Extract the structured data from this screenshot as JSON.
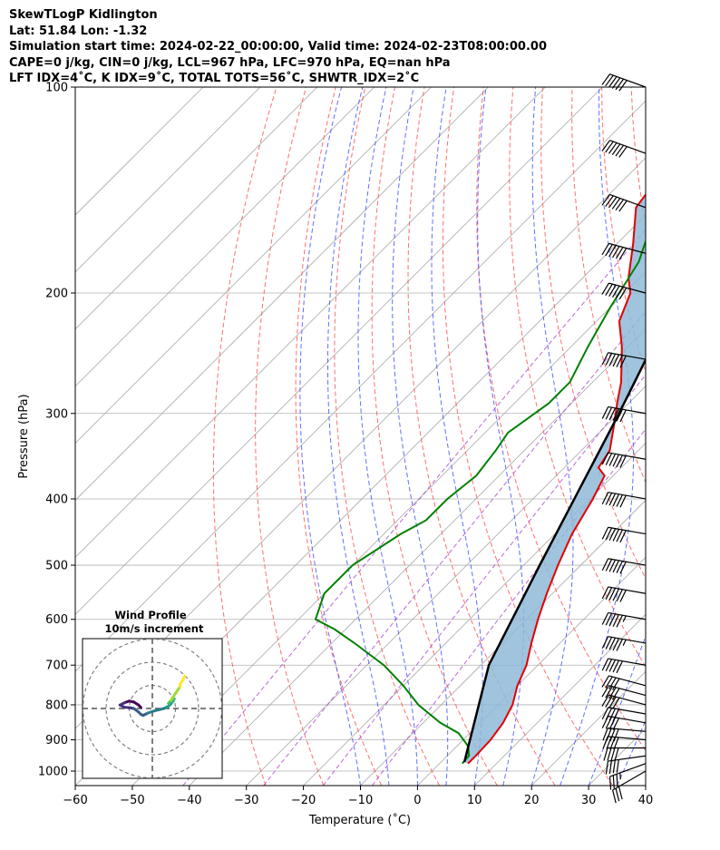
{
  "header": {
    "line1": "SkewTLogP Kidlington",
    "line2": "Lat: 51.84   Lon: -1.32",
    "line3": "Simulation start time: 2024-02-22_00:00:00, Valid time: 2024-02-23T08:00:00.00",
    "line4": "CAPE=0 j/kg, CIN=0 j/kg, LCL=967 hPa, LFC=970 hPa, EQ=nan hPa",
    "line5": "LFT IDX=4˚C, K IDX=9˚C, TOTAL TOTS=56˚C, SHWTR_IDX=2˚C"
  },
  "chart_data": {
    "type": "line",
    "xlabel": "Temperature (˚C)",
    "ylabel": "Pressure (hPa)",
    "xlim": [
      -60,
      40
    ],
    "ylim": [
      1050,
      100
    ],
    "y_scale": "log",
    "grid": true,
    "x_ticks": [
      "−60",
      "−50",
      "−40",
      "−30",
      "−20",
      "−10",
      "0",
      "10",
      "20",
      "30",
      "40"
    ],
    "y_ticks": [
      "100",
      "200",
      "300",
      "400",
      "500",
      "600",
      "700",
      "800",
      "900",
      "1000"
    ],
    "series": [
      {
        "role": "temperature",
        "color": "#e00000",
        "points": [
          [
            5,
            975
          ],
          [
            5,
            950
          ],
          [
            4.8,
            900
          ],
          [
            4,
            850
          ],
          [
            2.5,
            800
          ],
          [
            0,
            750
          ],
          [
            -2,
            700
          ],
          [
            -5,
            650
          ],
          [
            -8,
            600
          ],
          [
            -11,
            550
          ],
          [
            -14,
            500
          ],
          [
            -17,
            450
          ],
          [
            -19.5,
            400
          ],
          [
            -21.5,
            370
          ],
          [
            -24,
            360
          ],
          [
            -25,
            340
          ],
          [
            -29,
            310
          ],
          [
            -32,
            290
          ],
          [
            -35,
            270
          ],
          [
            -41,
            240
          ],
          [
            -46,
            220
          ],
          [
            -49,
            200
          ],
          [
            -52,
            190
          ],
          [
            -57,
            170
          ],
          [
            -63,
            150
          ],
          [
            -66,
            120
          ],
          [
            -70,
            100
          ]
        ]
      },
      {
        "role": "dewpoint",
        "color": "#008000",
        "points": [
          [
            4,
            975
          ],
          [
            3.8,
            950
          ],
          [
            2,
            920
          ],
          [
            -2,
            880
          ],
          [
            -7,
            850
          ],
          [
            -14,
            800
          ],
          [
            -20,
            750
          ],
          [
            -27,
            700
          ],
          [
            -36,
            650
          ],
          [
            -42,
            620
          ],
          [
            -47,
            600
          ],
          [
            -50,
            550
          ],
          [
            -50,
            500
          ],
          [
            -47,
            450
          ],
          [
            -45,
            430
          ],
          [
            -45,
            400
          ],
          [
            -44,
            370
          ],
          [
            -45,
            340
          ],
          [
            -46,
            320
          ],
          [
            -44,
            290
          ],
          [
            -44,
            270
          ],
          [
            -47,
            240
          ],
          [
            -50,
            210
          ],
          [
            -53,
            180
          ],
          [
            -55,
            170
          ],
          [
            -61,
            140
          ],
          [
            -66,
            120
          ],
          [
            -70,
            100
          ]
        ]
      },
      {
        "role": "parcel",
        "color": "#000000",
        "points": [
          [
            4.1,
            970
          ],
          [
            -8.6,
            700
          ],
          [
            -17.2,
            500
          ],
          [
            -29.9,
            300
          ],
          [
            -40.5,
            200
          ],
          [
            -54.3,
            150
          ],
          [
            -76.3,
            100
          ]
        ]
      }
    ],
    "dry_adiabats_theta_C": [
      -30,
      -20,
      -10,
      0,
      10,
      20,
      30,
      40,
      50,
      60,
      70,
      80,
      90,
      100,
      110,
      120,
      130
    ],
    "moist_adiabats_C": [
      -10,
      -5,
      0,
      5,
      10,
      15,
      20,
      25,
      30,
      35
    ],
    "isotherm_step_C": 10,
    "wind_barbs": {
      "pressures": [
        1000,
        975,
        950,
        925,
        900,
        875,
        850,
        825,
        800,
        775,
        750,
        700,
        650,
        600,
        550,
        500,
        450,
        400,
        350,
        300,
        250,
        200,
        175,
        150,
        125,
        100
      ],
      "speeds_kt": [
        30,
        35,
        40,
        40,
        40,
        40,
        40,
        40,
        40,
        40,
        40,
        50,
        55,
        55,
        60,
        60,
        60,
        60,
        60,
        60,
        60,
        60,
        60,
        60,
        60,
        60
      ],
      "directions_deg": [
        240,
        250,
        262,
        270,
        275,
        275,
        280,
        280,
        285,
        285,
        285,
        280,
        280,
        280,
        280,
        280,
        280,
        280,
        280,
        280,
        280,
        285,
        285,
        290,
        290,
        290
      ]
    },
    "hodograph": {
      "title": "Wind Profile",
      "subtitle": "10m/s increment",
      "ring_step_ms": 10,
      "colormap": "viridis",
      "uv_ms": [
        [
          -5,
          0.5
        ],
        [
          -6,
          1.5
        ],
        [
          -8,
          2.8
        ],
        [
          -10,
          3.2
        ],
        [
          -12,
          2.5
        ],
        [
          -14,
          1.5
        ],
        [
          -12,
          0.5
        ],
        [
          -10,
          0.4
        ],
        [
          -8,
          0
        ],
        [
          -6,
          -1.5
        ],
        [
          -5,
          -2.5
        ],
        [
          -4,
          -3
        ],
        [
          -2,
          -2
        ],
        [
          1,
          -1
        ],
        [
          3,
          -0.5
        ],
        [
          5,
          0
        ],
        [
          6,
          0.5
        ],
        [
          7,
          1
        ],
        [
          8,
          2
        ],
        [
          9,
          3.2
        ],
        [
          9.5,
          4.2
        ],
        [
          8.5,
          3.5
        ],
        [
          8,
          3
        ],
        [
          7,
          2.2
        ],
        [
          8,
          3.5
        ],
        [
          9,
          5
        ],
        [
          10,
          6.5
        ],
        [
          11,
          8
        ],
        [
          12,
          9.5
        ],
        [
          12,
          10.5
        ],
        [
          13,
          12
        ],
        [
          14,
          14
        ]
      ]
    }
  }
}
